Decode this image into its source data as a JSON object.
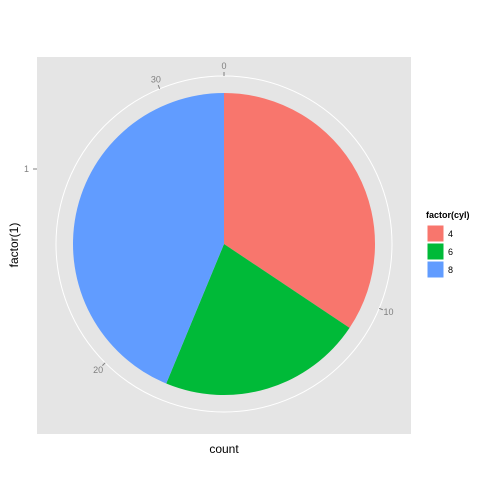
{
  "chart_data": {
    "type": "pie",
    "categories": [
      "4",
      "6",
      "8"
    ],
    "values": [
      11,
      7,
      14
    ],
    "colors": [
      "#F8766D",
      "#00BA38",
      "#619CFF"
    ],
    "xlabel": "count",
    "ylabel": "factor(1)",
    "radial_ticks": [
      "0",
      "10",
      "20",
      "30"
    ],
    "radial_tick_values": [
      0,
      10,
      20,
      30
    ],
    "y_tick_labels": [
      "1"
    ],
    "legend_title": "factor(cyl)",
    "legend_position": "right",
    "background": "#E5E5E5",
    "grid": true
  }
}
